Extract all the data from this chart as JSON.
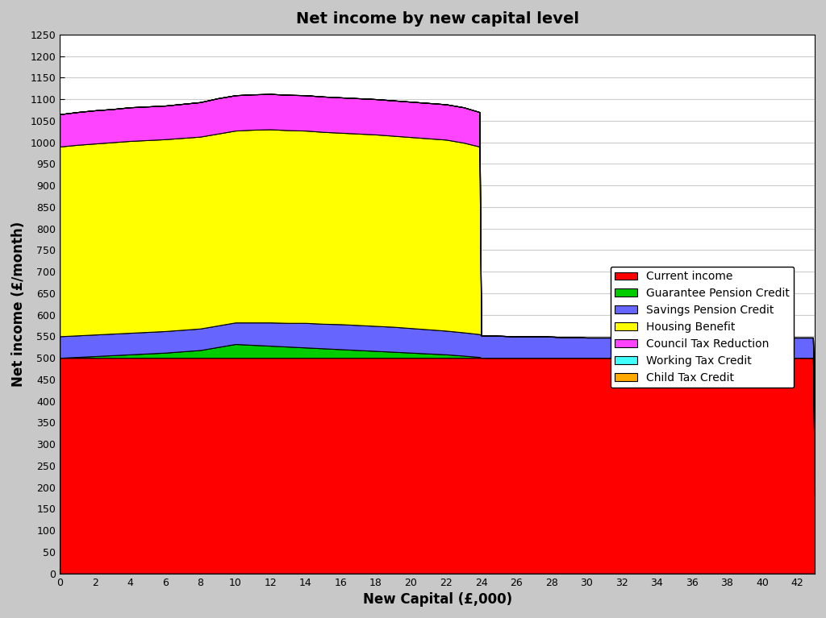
{
  "title": "Net income by new capital level",
  "xlabel": "New Capital (£,000)",
  "ylabel": "Net income (£/month)",
  "xlim": [
    0,
    43
  ],
  "ylim": [
    0,
    1250
  ],
  "xticks": [
    0,
    2,
    4,
    6,
    8,
    10,
    12,
    14,
    16,
    18,
    20,
    22,
    24,
    26,
    28,
    30,
    32,
    34,
    36,
    38,
    40,
    42
  ],
  "yticks": [
    0,
    50,
    100,
    150,
    200,
    250,
    300,
    350,
    400,
    450,
    500,
    550,
    600,
    650,
    700,
    750,
    800,
    850,
    900,
    950,
    1000,
    1050,
    1100,
    1150,
    1200,
    1250
  ],
  "legend_labels": [
    "Current income",
    "Guarantee Pension Credit",
    "Savings Pension Credit",
    "Housing Benefit",
    "Council Tax Reduction",
    "Working Tax Credit",
    "Child Tax Credit"
  ],
  "colors": [
    "#ff0000",
    "#00cc00",
    "#6666ff",
    "#ffff00",
    "#ff44ff",
    "#44ffff",
    "#ffaa00"
  ],
  "plot_bg": "#ffffff",
  "fig_bg": "#c8c8c8",
  "series": {
    "x": [
      0,
      1,
      2,
      3,
      4,
      5,
      6,
      7,
      8,
      9,
      10,
      11,
      12,
      13,
      14,
      15,
      16,
      17,
      18,
      19,
      20,
      21,
      22,
      23,
      23.9,
      24,
      24.1,
      25,
      26,
      27,
      28,
      29,
      30,
      31,
      32,
      33,
      34,
      35,
      36,
      37,
      38,
      39,
      40,
      41,
      42,
      42.9,
      43
    ],
    "current_income": [
      500,
      500,
      500,
      500,
      500,
      500,
      500,
      500,
      500,
      500,
      500,
      500,
      500,
      500,
      500,
      500,
      500,
      500,
      500,
      500,
      500,
      500,
      500,
      500,
      500,
      500,
      500,
      500,
      500,
      500,
      500,
      500,
      500,
      500,
      500,
      500,
      500,
      500,
      500,
      500,
      500,
      500,
      500,
      500,
      500,
      500,
      170
    ],
    "guarantee_pension": [
      0,
      2,
      4,
      6,
      8,
      10,
      12,
      15,
      18,
      25,
      32,
      30,
      28,
      26,
      24,
      22,
      20,
      18,
      16,
      14,
      12,
      10,
      8,
      5,
      2,
      0,
      0,
      0,
      0,
      0,
      0,
      0,
      0,
      0,
      0,
      0,
      0,
      0,
      0,
      0,
      0,
      0,
      0,
      0,
      0,
      0,
      0
    ],
    "savings_pension": [
      50,
      50,
      50,
      50,
      50,
      50,
      50,
      50,
      50,
      50,
      50,
      52,
      54,
      55,
      57,
      57,
      58,
      58,
      58,
      58,
      57,
      56,
      55,
      54,
      53,
      52,
      52,
      51,
      50,
      50,
      49,
      48,
      47,
      47,
      47,
      47,
      47,
      47,
      47,
      47,
      47,
      47,
      47,
      47,
      47,
      47,
      47
    ],
    "housing_benefit": [
      440,
      442,
      443,
      444,
      445,
      445,
      445,
      445,
      445,
      445,
      445,
      447,
      448,
      447,
      446,
      445,
      444,
      444,
      444,
      443,
      443,
      443,
      443,
      440,
      435,
      0,
      0,
      0,
      0,
      0,
      0,
      0,
      0,
      0,
      0,
      0,
      0,
      0,
      0,
      0,
      0,
      0,
      0,
      0,
      0,
      0,
      0
    ],
    "council_tax": [
      75,
      76,
      77,
      77,
      78,
      78,
      78,
      79,
      80,
      82,
      82,
      82,
      82,
      82,
      82,
      82,
      82,
      82,
      82,
      82,
      82,
      82,
      82,
      82,
      80,
      0,
      0,
      0,
      0,
      0,
      0,
      0,
      0,
      0,
      0,
      0,
      0,
      0,
      0,
      0,
      0,
      0,
      0,
      0,
      0,
      0,
      0
    ],
    "working_tax": [
      0,
      0,
      0,
      0,
      0,
      0,
      0,
      0,
      0,
      0,
      0,
      0,
      0,
      0,
      0,
      0,
      0,
      0,
      0,
      0,
      0,
      0,
      0,
      0,
      0,
      0,
      0,
      0,
      0,
      0,
      0,
      0,
      0,
      0,
      0,
      0,
      0,
      0,
      0,
      0,
      0,
      0,
      0,
      0,
      0,
      0,
      0
    ],
    "child_tax": [
      0,
      0,
      0,
      0,
      0,
      0,
      0,
      0,
      0,
      0,
      0,
      0,
      0,
      0,
      0,
      0,
      0,
      0,
      0,
      0,
      0,
      0,
      0,
      0,
      0,
      0,
      0,
      0,
      0,
      0,
      0,
      0,
      0,
      0,
      0,
      0,
      0,
      0,
      0,
      0,
      0,
      0,
      0,
      0,
      0,
      0,
      0
    ]
  }
}
